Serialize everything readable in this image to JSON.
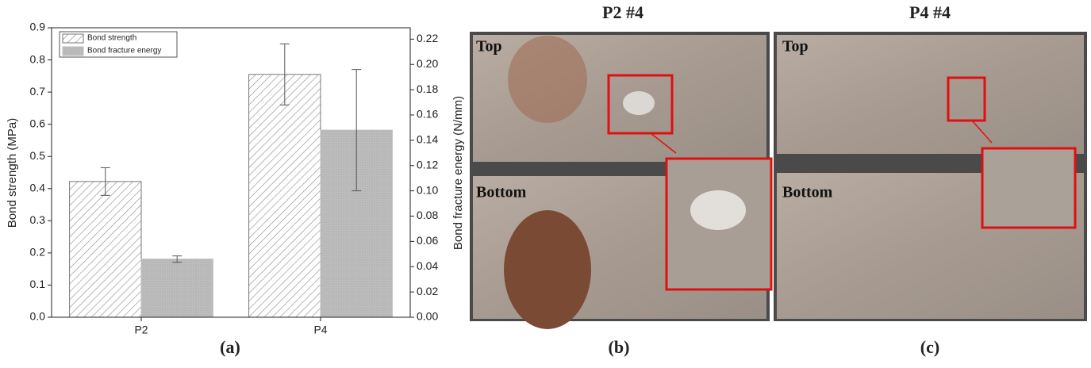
{
  "chart_data": {
    "type": "bar",
    "ylabel": "Bond strength (MPa)",
    "y2label": "Bond fracture energy (N/mm)",
    "categories": [
      "P2",
      "P4"
    ],
    "series": [
      {
        "name": "Bond strength",
        "color": "#777777",
        "hatch": true,
        "values": [
          0.422,
          0.755
        ],
        "errors": [
          0.043,
          0.095
        ]
      },
      {
        "name": "Bond fracture energy",
        "color": "#bdbdbd",
        "hatch": false,
        "axis": "y2",
        "values": [
          0.046,
          0.148
        ],
        "errors": [
          0.0025,
          0.048
        ]
      }
    ],
    "ylim": [
      0,
      0.9
    ],
    "yticks": [
      {
        "value": 0,
        "label": "0.0"
      },
      0.1,
      0.2,
      0.3,
      0.4,
      0.5,
      0.6,
      0.7,
      0.8,
      0.9
    ],
    "y2lim": [
      0,
      0.229
    ],
    "y2ticks": [
      {
        "value": 0,
        "label": "0.00"
      },
      {
        "value": 0.02,
        "label": "0.02"
      },
      {
        "value": 0.04,
        "label": "0.04"
      },
      {
        "value": 0.06,
        "label": "0.06"
      },
      {
        "value": 0.08,
        "label": "0.08"
      },
      {
        "value": 0.1,
        "label": "0.10"
      },
      {
        "value": 0.12,
        "label": "0.12"
      },
      {
        "value": 0.14,
        "label": "0.14"
      },
      {
        "value": 0.16,
        "label": "0.16"
      },
      {
        "value": 0.18,
        "label": "0.18"
      },
      {
        "value": 0.2,
        "label": "0.20"
      },
      {
        "value": 0.22,
        "label": "0.22"
      }
    ],
    "legend": "top-left"
  },
  "figure": {
    "labels": [
      "(a)",
      "(b)",
      "(c)"
    ],
    "photos": [
      {
        "title": "P2 #4",
        "top": "Top",
        "bottom": "Bottom"
      },
      {
        "title": "P4 #4",
        "top": "Top",
        "bottom": "Bottom"
      }
    ]
  }
}
